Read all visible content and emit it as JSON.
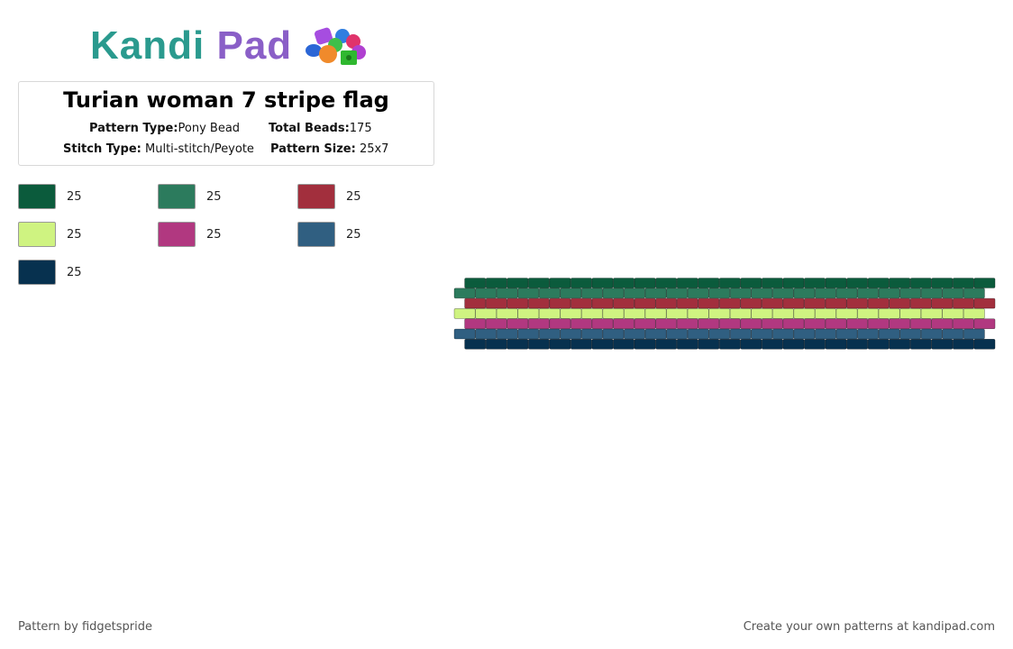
{
  "brand": {
    "logo_word1": "Kandi",
    "logo_word2": "Pad"
  },
  "pattern": {
    "title": "Turian woman 7 stripe flag",
    "pattern_type_label": "Pattern Type:",
    "pattern_type": "Pony Bead",
    "total_beads_label": "Total Beads:",
    "total_beads": "175",
    "stitch_type_label": "Stitch Type:",
    "stitch_type": "Multi-stitch/Peyote",
    "pattern_size_label": "Pattern Size:",
    "pattern_size": "25x7"
  },
  "legend": [
    {
      "color": "#0b5b3c",
      "count": "25"
    },
    {
      "color": "#2c7b5d",
      "count": "25"
    },
    {
      "color": "#a22f3d",
      "count": "25"
    },
    {
      "color": "#cff381",
      "count": "25"
    },
    {
      "color": "#b13880",
      "count": "25"
    },
    {
      "color": "#305f81",
      "count": "25"
    },
    {
      "color": "#07314f",
      "count": "25"
    }
  ],
  "grid": {
    "columns": 25,
    "rows": [
      "#0b5b3c",
      "#2c7b5d",
      "#a22f3d",
      "#cff381",
      "#b13880",
      "#305f81",
      "#07314f"
    ]
  },
  "footer": {
    "credit": "Pattern by fidgetspride",
    "cta": "Create your own patterns at kandipad.com"
  }
}
